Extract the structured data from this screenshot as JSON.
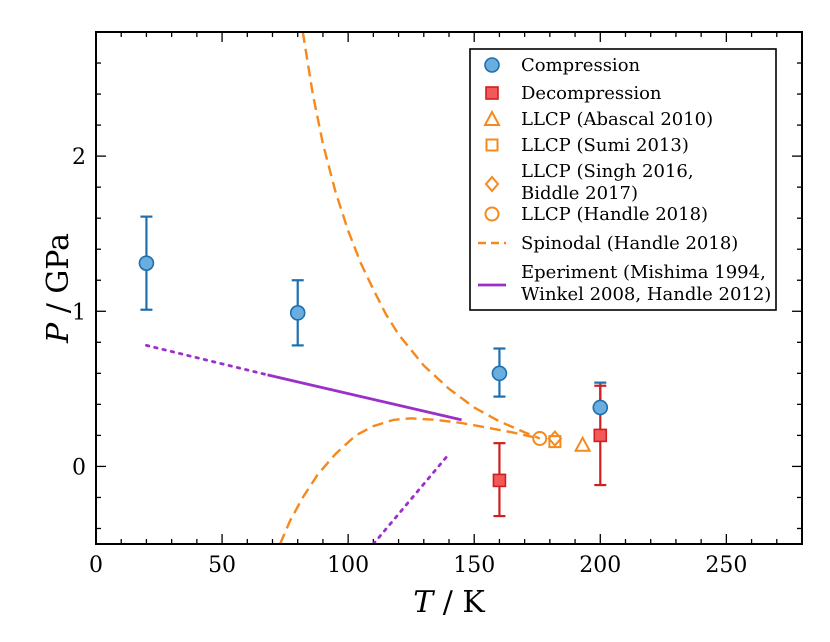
{
  "chart_data": {
    "type": "scatter",
    "xlabel": {
      "italic": "T",
      "rest": " / K"
    },
    "ylabel": {
      "italic": "P",
      "rest": " / GPa"
    },
    "xlim": [
      0,
      280
    ],
    "ylim": [
      -0.5,
      2.8
    ],
    "xticks": [
      0,
      50,
      100,
      150,
      200,
      250
    ],
    "xtick_labels": [
      "0",
      "50",
      "100",
      "150",
      "200",
      "250"
    ],
    "yticks": [
      0,
      1,
      2
    ],
    "ytick_labels": [
      "0",
      "1",
      "2"
    ],
    "x_minor_step": 10,
    "y_minor_step": 0.2,
    "legend_position": "top-right",
    "colors": {
      "compression_fill": "#6aaee0",
      "compression_edge": "#1f6fae",
      "decompression_fill": "#f25a5a",
      "decompression_edge": "#d11f1f",
      "llcp": "#f5891c",
      "spinodal": "#f5891c",
      "experiment": "#9b30c8"
    },
    "series": [
      {
        "name": "Compression",
        "marker": "circle",
        "points": [
          {
            "x": 20,
            "y": 1.31,
            "ylow": 1.01,
            "yhigh": 1.61
          },
          {
            "x": 80,
            "y": 0.99,
            "ylow": 0.78,
            "yhigh": 1.2
          },
          {
            "x": 160,
            "y": 0.6,
            "ylow": 0.45,
            "yhigh": 0.76
          },
          {
            "x": 200,
            "y": 0.38,
            "ylow": 0.38,
            "yhigh": 0.54
          }
        ]
      },
      {
        "name": "Decompression",
        "marker": "square",
        "points": [
          {
            "x": 160,
            "y": -0.09,
            "ylow": -0.32,
            "yhigh": 0.15
          },
          {
            "x": 200,
            "y": 0.2,
            "ylow": -0.12,
            "yhigh": 0.52
          }
        ]
      },
      {
        "name": "LLCP (Abascal 2010)",
        "marker": "triangle",
        "points": [
          {
            "x": 193,
            "y": 0.14
          }
        ]
      },
      {
        "name": "LLCP (Sumi 2013)",
        "marker": "square-open",
        "points": [
          {
            "x": 182,
            "y": 0.16
          }
        ]
      },
      {
        "name": "LLCP (Singh 2016,\nBiddle 2017)",
        "marker": "diamond-open",
        "points": [
          {
            "x": 182,
            "y": 0.18
          }
        ]
      },
      {
        "name": "LLCP (Handle 2018)",
        "marker": "circle-open",
        "points": [
          {
            "x": 176,
            "y": 0.18
          }
        ]
      },
      {
        "name": "Spinodal (Handle 2018)",
        "style": "dashed",
        "upper": [
          [
            82,
            2.8
          ],
          [
            86,
            2.4
          ],
          [
            90,
            2.08
          ],
          [
            95,
            1.77
          ],
          [
            100,
            1.52
          ],
          [
            105,
            1.31
          ],
          [
            110,
            1.14
          ],
          [
            115,
            0.98
          ],
          [
            120,
            0.85
          ],
          [
            130,
            0.65
          ],
          [
            140,
            0.5
          ],
          [
            150,
            0.38
          ],
          [
            160,
            0.29
          ],
          [
            170,
            0.22
          ],
          [
            176,
            0.18
          ]
        ],
        "lower": [
          [
            73,
            -0.5
          ],
          [
            77,
            -0.35
          ],
          [
            82,
            -0.2
          ],
          [
            88,
            -0.05
          ],
          [
            95,
            0.08
          ],
          [
            103,
            0.2
          ],
          [
            110,
            0.26
          ],
          [
            118,
            0.3
          ],
          [
            125,
            0.31
          ],
          [
            135,
            0.3
          ],
          [
            145,
            0.28
          ],
          [
            155,
            0.25
          ],
          [
            165,
            0.22
          ],
          [
            176,
            0.18
          ]
        ]
      },
      {
        "name": "Eperiment (Mishima 1994,\nWinkel 2008, Handle 2012)",
        "style": "solid",
        "segments": [
          {
            "style": "dotted",
            "points": [
              [
                20,
                0.78
              ],
              [
                68,
                0.59
              ]
            ]
          },
          {
            "style": "solid",
            "points": [
              [
                68,
                0.59
              ],
              [
                145,
                0.3
              ]
            ]
          },
          {
            "style": "dotted",
            "points": [
              [
                110,
                -0.5
              ],
              [
                140,
                0.08
              ]
            ]
          }
        ]
      }
    ],
    "legend": [
      {
        "label": "Compression",
        "marker": "circle",
        "color_key": "compression"
      },
      {
        "label": "Decompression",
        "marker": "square",
        "color_key": "decompression"
      },
      {
        "label": "LLCP (Abascal 2010)",
        "marker": "triangle",
        "color_key": "llcp"
      },
      {
        "label": "LLCP (Sumi 2013)",
        "marker": "square-open",
        "color_key": "llcp"
      },
      {
        "label": "LLCP (Singh 2016,",
        "label2": "Biddle 2017)",
        "marker": "diamond-open",
        "color_key": "llcp"
      },
      {
        "label": "LLCP (Handle 2018)",
        "marker": "circle-open",
        "color_key": "llcp"
      },
      {
        "label": "Spinodal (Handle 2018)",
        "marker": "dashed-line",
        "color_key": "spinodal"
      },
      {
        "label": "Eperiment (Mishima 1994,",
        "label2": "Winkel 2008, Handle 2012)",
        "marker": "solid-line",
        "color_key": "experiment"
      }
    ]
  }
}
